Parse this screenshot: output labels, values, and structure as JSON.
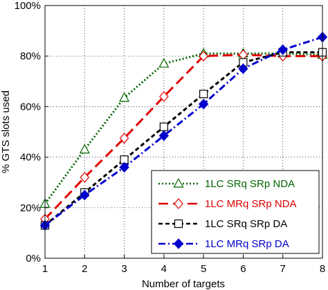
{
  "chart_data": {
    "type": "line",
    "title": "",
    "xlabel": "Number of targets",
    "ylabel": "% GTS slots used",
    "x": [
      1,
      2,
      3,
      4,
      5,
      6,
      7,
      8
    ],
    "xlim": [
      1,
      8
    ],
    "ylim": [
      0,
      100
    ],
    "x_ticks": [
      "1",
      "2",
      "3",
      "4",
      "5",
      "6",
      "7",
      "8"
    ],
    "y_ticks": [
      {
        "value": 0,
        "label": "0%"
      },
      {
        "value": 20,
        "label": "20%"
      },
      {
        "value": 40,
        "label": "40%"
      },
      {
        "value": 60,
        "label": "60%"
      },
      {
        "value": 80,
        "label": "80%"
      },
      {
        "value": 100,
        "label": "100%"
      }
    ],
    "grid": true,
    "legend_position": "bottom-right",
    "series": [
      {
        "name": "1LC SRq SRp NDA",
        "color": "#006400",
        "dash": "dotted",
        "marker": "triangle",
        "values": [
          21.5,
          43,
          63.5,
          77,
          81,
          81,
          81,
          80.5
        ]
      },
      {
        "name": "1LC MRq SRp NDA",
        "color": "#e00000",
        "dash": "dashed",
        "marker": "diamond",
        "values": [
          15.5,
          32,
          47.5,
          64,
          80,
          80.5,
          80,
          80
        ]
      },
      {
        "name": "1LC SRq SRp DA",
        "color": "#000000",
        "dash": "short-dash",
        "marker": "square",
        "values": [
          13,
          26,
          39,
          52,
          65,
          77.5,
          81.5,
          81.5
        ]
      },
      {
        "name": "1LC MRq SRp DA",
        "color": "#0000cc",
        "dash": "dash-dot",
        "marker": "filled-diamond",
        "values": [
          13,
          25,
          36,
          48.5,
          61,
          75,
          82.5,
          87.5
        ]
      }
    ]
  }
}
